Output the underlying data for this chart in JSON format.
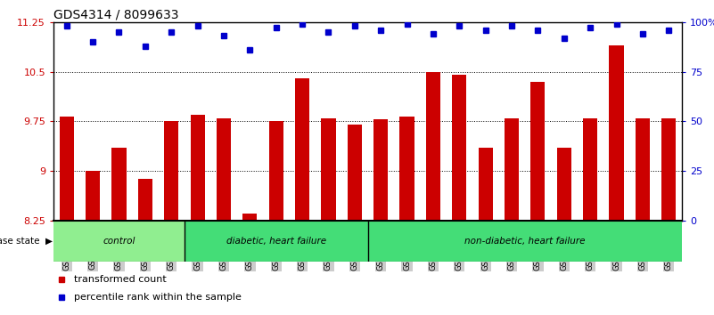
{
  "title": "GDS4314 / 8099633",
  "samples": [
    "GSM662158",
    "GSM662159",
    "GSM662160",
    "GSM662161",
    "GSM662162",
    "GSM662163",
    "GSM662164",
    "GSM662165",
    "GSM662166",
    "GSM662167",
    "GSM662168",
    "GSM662169",
    "GSM662170",
    "GSM662171",
    "GSM662172",
    "GSM662173",
    "GSM662174",
    "GSM662175",
    "GSM662176",
    "GSM662177",
    "GSM662178",
    "GSM662179",
    "GSM662180",
    "GSM662181"
  ],
  "bar_values": [
    9.82,
    9.0,
    9.35,
    8.88,
    9.75,
    9.85,
    9.8,
    8.35,
    9.75,
    10.4,
    9.8,
    9.7,
    9.78,
    9.82,
    10.5,
    10.45,
    9.35,
    9.8,
    10.35,
    9.35,
    9.8,
    10.9,
    9.8,
    9.8
  ],
  "percentile_pct": [
    98,
    90,
    95,
    88,
    95,
    98,
    93,
    86,
    97,
    99,
    95,
    98,
    96,
    99,
    94,
    98,
    96,
    98,
    96,
    92,
    97,
    99,
    94,
    96
  ],
  "bar_color": "#cc0000",
  "dot_color": "#0000cc",
  "ylim_left": [
    8.25,
    11.25
  ],
  "ylim_right": [
    0,
    100
  ],
  "yticks_left": [
    8.25,
    9.0,
    9.75,
    10.5,
    11.25
  ],
  "yticks_right": [
    0,
    25,
    50,
    75,
    100
  ],
  "ytick_labels_left": [
    "8.25",
    "9",
    "9.75",
    "10.5",
    "11.25"
  ],
  "ytick_labels_right": [
    "0",
    "25",
    "50",
    "75",
    "100%"
  ],
  "hlines": [
    9.0,
    9.75,
    10.5
  ],
  "group_labels": [
    "control",
    "diabetic, heart failure",
    "non-diabetic, heart failure"
  ],
  "group_starts": [
    0,
    5,
    12
  ],
  "group_ends": [
    5,
    12,
    24
  ],
  "group_colors": [
    "#90ee90",
    "#44dd77",
    "#44dd77"
  ],
  "disease_state_label": "disease state",
  "legend_labels": [
    "transformed count",
    "percentile rank within the sample"
  ],
  "legend_colors": [
    "#cc0000",
    "#0000cc"
  ],
  "bar_width": 0.55,
  "tick_fontsize": 8,
  "xticklabel_fontsize": 6.0,
  "title_fontsize": 10
}
